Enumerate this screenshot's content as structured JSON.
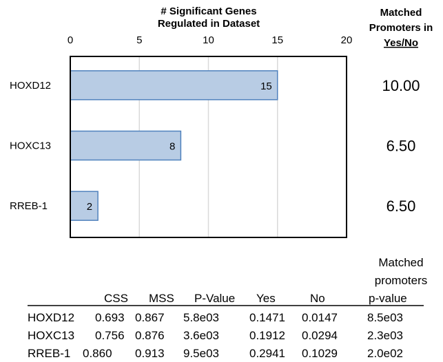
{
  "chart_data": {
    "type": "bar",
    "orientation": "horizontal",
    "title_lines": [
      "# Significant Genes",
      "Regulated in Dataset"
    ],
    "categories": [
      "HOXD12",
      "HOXC13",
      "RREB-1"
    ],
    "values": [
      15,
      8,
      2
    ],
    "data_labels": [
      "15",
      "8",
      "2"
    ],
    "xlim": [
      0,
      20
    ],
    "x_ticks": [
      "0",
      "5",
      "10",
      "15",
      "20"
    ],
    "grid": "vertical",
    "bar_color": "#b8cce4",
    "bar_border_color": "#4f81bd",
    "side_column": {
      "header_lines": [
        "Matched",
        "Promoters in",
        "Yes/No"
      ],
      "values": [
        "10.00",
        "6.50",
        "6.50"
      ]
    }
  },
  "table": {
    "header_top": [
      "Matched",
      "promoters"
    ],
    "columns": [
      "",
      "CSS",
      "MSS",
      "P-Value",
      "Yes",
      "No",
      "p-value"
    ],
    "rows": [
      [
        "HOXD12",
        "0.693",
        "0.867",
        "5.8e03",
        "0.1471",
        "0.0147",
        "8.5e03"
      ],
      [
        "HOXC13",
        "0.756",
        "0.876",
        "3.6e03",
        "0.1912",
        "0.0294",
        "2.3e03"
      ],
      [
        "RREB-1",
        "0.860",
        "0.913",
        "9.5e03",
        "0.2941",
        "0.1029",
        "2.0e02"
      ]
    ]
  }
}
